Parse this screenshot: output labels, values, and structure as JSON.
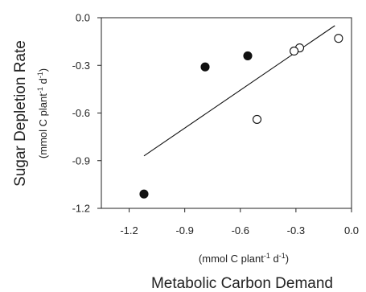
{
  "chart_data": {
    "type": "scatter",
    "xlim": [
      -1.35,
      0.0
    ],
    "ylim": [
      -1.2,
      0.0
    ],
    "xticks": [
      -1.2,
      -0.9,
      -0.6,
      -0.3,
      0.0
    ],
    "yticks": [
      0.0,
      -0.3,
      -0.6,
      -0.9,
      -1.2
    ],
    "xtick_labels": [
      "-1.2",
      "-0.9",
      "-0.6",
      "-0.3",
      "0.0"
    ],
    "ytick_labels": [
      "0.0",
      "-0.3",
      "-0.6",
      "-0.9",
      "-1.2"
    ],
    "xlabel": "Metabolic Carbon Demand",
    "ylabel": "Sugar Depletion Rate",
    "x_units": {
      "pre": "(mmol C plant",
      "sup1": "-1",
      "mid": " d",
      "sup2": "-1",
      "post": ")"
    },
    "y_units": {
      "pre": "(mmol C plant",
      "sup1": "-1",
      "mid": " d",
      "sup2": "-1",
      "post": ")"
    },
    "grid": false,
    "series": [
      {
        "marker": "filled-circle",
        "color": "#111111",
        "points": [
          {
            "x": -1.12,
            "y": -1.11
          },
          {
            "x": -0.79,
            "y": -0.31
          },
          {
            "x": -0.56,
            "y": -0.24
          }
        ]
      },
      {
        "marker": "open-circle",
        "color": "#111111",
        "points": [
          {
            "x": -0.07,
            "y": -0.13
          },
          {
            "x": -0.28,
            "y": -0.19
          },
          {
            "x": -0.31,
            "y": -0.21
          },
          {
            "x": -0.51,
            "y": -0.64
          }
        ]
      }
    ],
    "regression_line": {
      "x": [
        -1.12,
        -0.09
      ],
      "y": [
        -0.87,
        -0.05
      ]
    }
  }
}
